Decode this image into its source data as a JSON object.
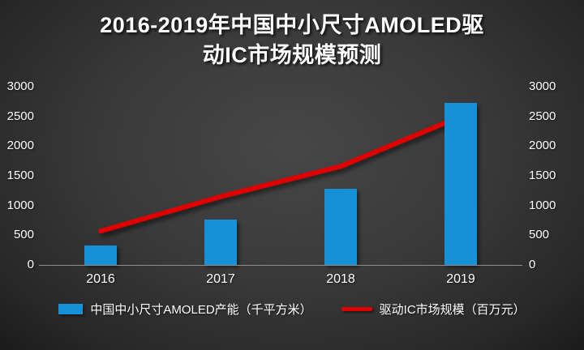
{
  "title_lines": [
    "2016-2019年中国中小尺寸AMOLED驱",
    "动IC市场规模预测"
  ],
  "chart_data": {
    "type": "combo",
    "title": "2016-2019年中国中小尺寸AMOLED驱动IC市场规模预测",
    "categories": [
      "2016",
      "2017",
      "2018",
      "2019"
    ],
    "series": [
      {
        "name": "中国中小尺寸AMOLED产能（千平方米）",
        "type": "bar",
        "color": "#1691d8",
        "values": [
          330,
          760,
          1280,
          2730
        ]
      },
      {
        "name": "驱动IC市场规模（百万元）",
        "type": "line",
        "color": "#e00000",
        "values": [
          570,
          1150,
          1660,
          2500
        ]
      }
    ],
    "y_axis": {
      "min": 0,
      "max": 3000,
      "tick_step": 500,
      "ticks": [
        0,
        500,
        1000,
        1500,
        2000,
        2500,
        3000
      ]
    },
    "dual_axis": true,
    "grid": false,
    "legend_position": "bottom",
    "background_color": "#383838",
    "text_color": "#ffffff"
  }
}
